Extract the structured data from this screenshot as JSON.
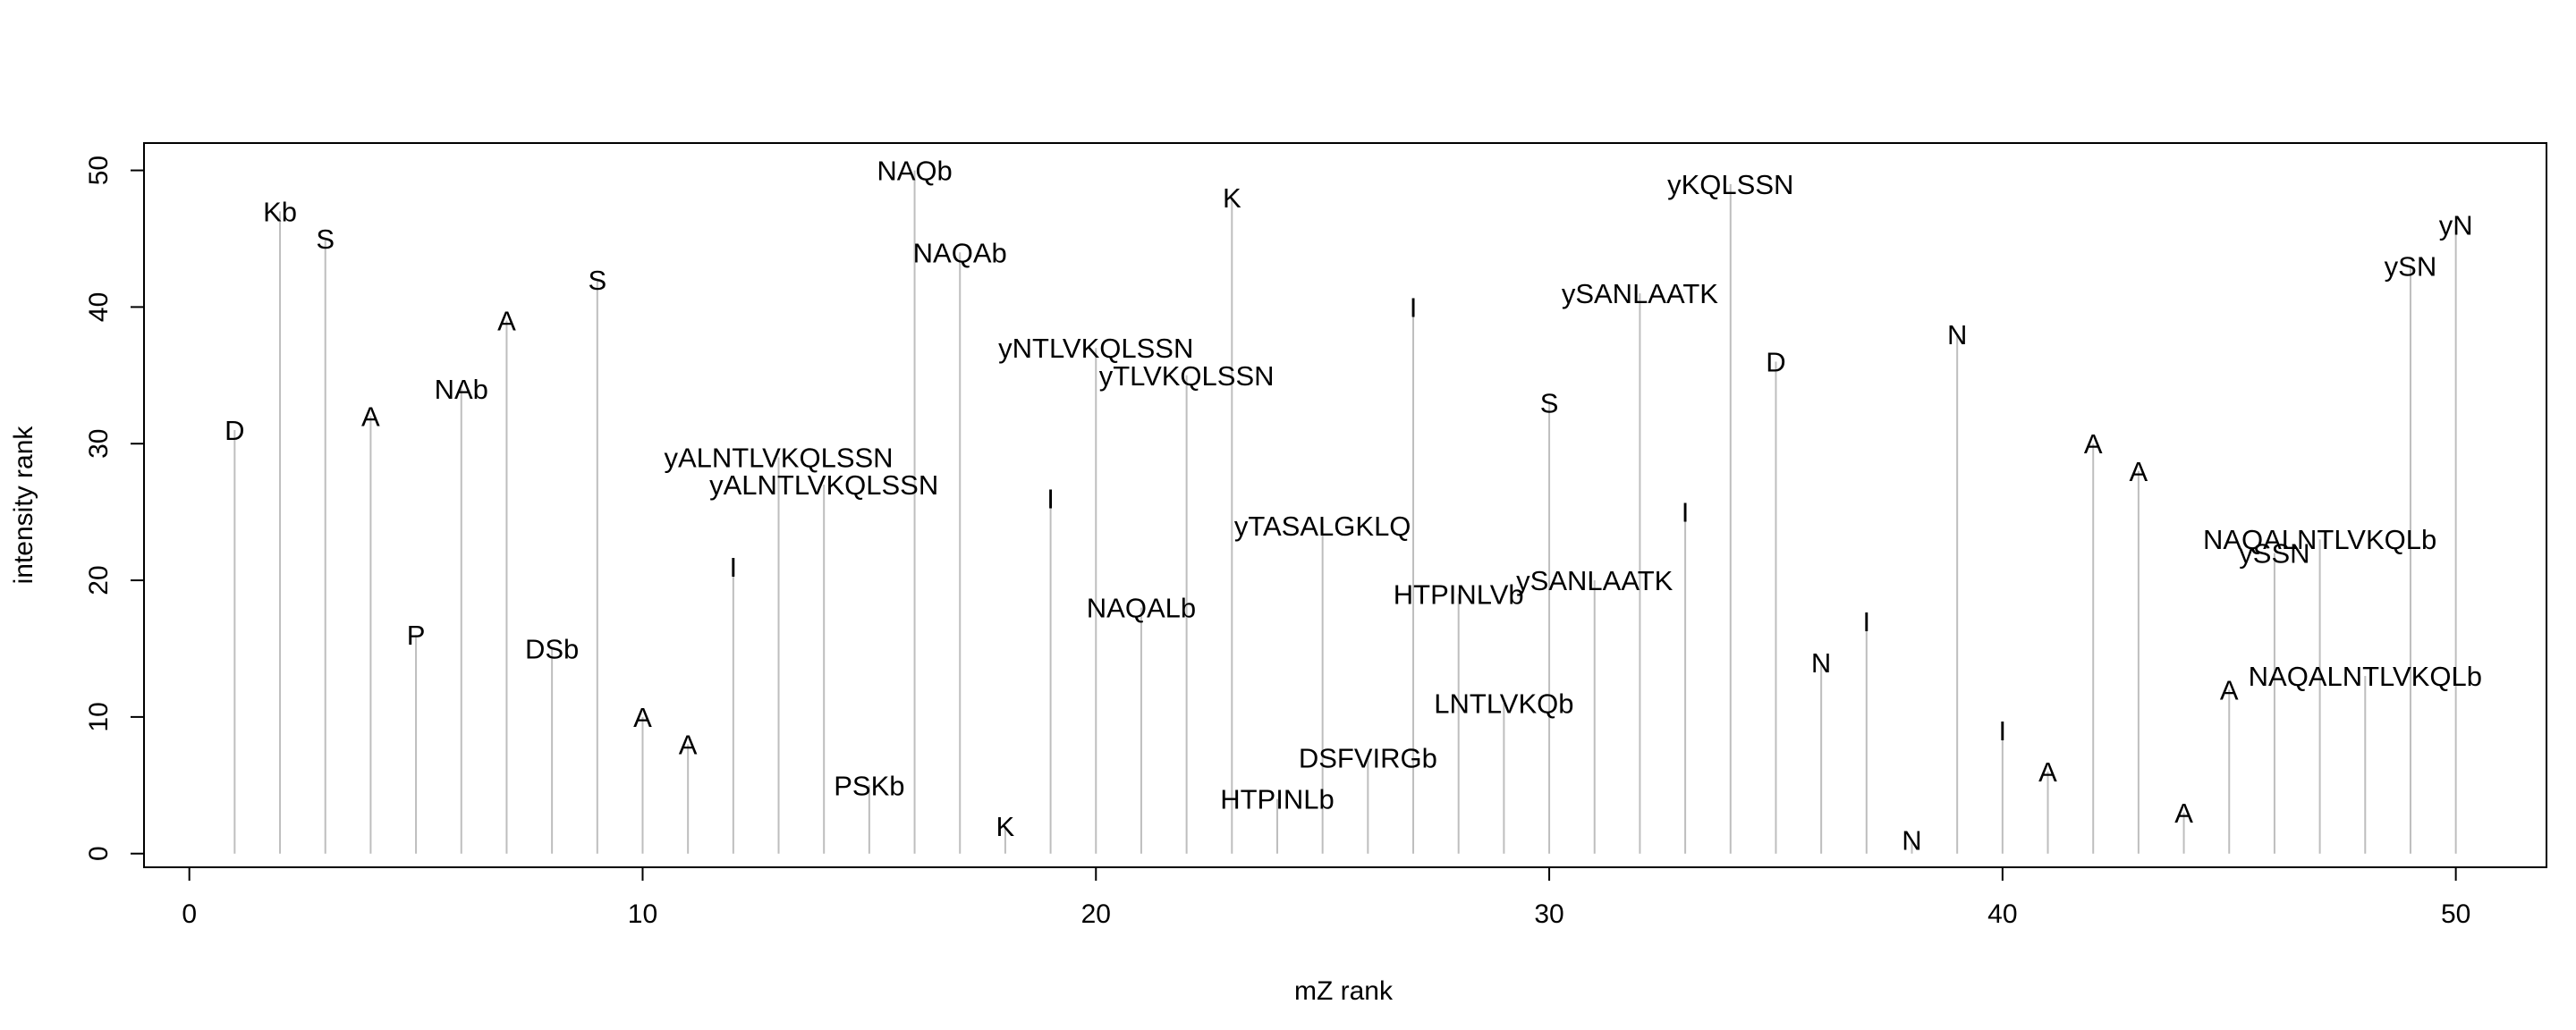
{
  "chart_data": {
    "type": "stem",
    "title": "",
    "xlabel": "mZ rank",
    "ylabel": "intensity rank",
    "xlim": [
      -1,
      52
    ],
    "ylim": [
      -1,
      52
    ],
    "xticks": [
      0,
      10,
      20,
      30,
      40,
      50
    ],
    "yticks": [
      0,
      10,
      20,
      30,
      40,
      50
    ],
    "grid": false,
    "points": [
      {
        "x": 1,
        "y": 31,
        "label": "D"
      },
      {
        "x": 2,
        "y": 47,
        "label": "Kb"
      },
      {
        "x": 3,
        "y": 45,
        "label": "S"
      },
      {
        "x": 4,
        "y": 32,
        "label": "A"
      },
      {
        "x": 5,
        "y": 16,
        "label": "P"
      },
      {
        "x": 6,
        "y": 34,
        "label": "NAb"
      },
      {
        "x": 7,
        "y": 39,
        "label": "A"
      },
      {
        "x": 8,
        "y": 15,
        "label": "DSb"
      },
      {
        "x": 9,
        "y": 42,
        "label": "S"
      },
      {
        "x": 10,
        "y": 10,
        "label": "A"
      },
      {
        "x": 11,
        "y": 8,
        "label": "A"
      },
      {
        "x": 12,
        "y": 21,
        "label": "I"
      },
      {
        "x": 13,
        "y": 29,
        "label": "yALNTLVKQLSSN"
      },
      {
        "x": 14,
        "y": 27,
        "label": "yALNTLVKQLSSN"
      },
      {
        "x": 15,
        "y": 5,
        "label": "PSKb"
      },
      {
        "x": 16,
        "y": 50,
        "label": "NAQb"
      },
      {
        "x": 17,
        "y": 44,
        "label": "NAQAb"
      },
      {
        "x": 18,
        "y": 2,
        "label": "K"
      },
      {
        "x": 19,
        "y": 26,
        "label": "I"
      },
      {
        "x": 20,
        "y": 37,
        "label": "yNTLVKQLSSN"
      },
      {
        "x": 21,
        "y": 18,
        "label": "NAQALb"
      },
      {
        "x": 22,
        "y": 35,
        "label": "yTLVKQLSSN"
      },
      {
        "x": 23,
        "y": 48,
        "label": "K"
      },
      {
        "x": 24,
        "y": 4,
        "label": "HTPINLb"
      },
      {
        "x": 25,
        "y": 24,
        "label": "yTASALGKLQ"
      },
      {
        "x": 26,
        "y": 7,
        "label": "DSFVIRGb"
      },
      {
        "x": 27,
        "y": 40,
        "label": "I"
      },
      {
        "x": 28,
        "y": 19,
        "label": "HTPINLVb"
      },
      {
        "x": 29,
        "y": 11,
        "label": "LNTLVKQb"
      },
      {
        "x": 30,
        "y": 33,
        "label": "S"
      },
      {
        "x": 31,
        "y": 20,
        "label": "ySANLAATK"
      },
      {
        "x": 32,
        "y": 41,
        "label": "ySANLAATK"
      },
      {
        "x": 33,
        "y": 25,
        "label": "I"
      },
      {
        "x": 34,
        "y": 49,
        "label": "yKQLSSN"
      },
      {
        "x": 35,
        "y": 36,
        "label": "D"
      },
      {
        "x": 36,
        "y": 14,
        "label": "N"
      },
      {
        "x": 37,
        "y": 17,
        "label": "I"
      },
      {
        "x": 38,
        "y": 1,
        "label": "N"
      },
      {
        "x": 39,
        "y": 38,
        "label": "N"
      },
      {
        "x": 40,
        "y": 9,
        "label": "I"
      },
      {
        "x": 41,
        "y": 6,
        "label": "A"
      },
      {
        "x": 42,
        "y": 30,
        "label": "A"
      },
      {
        "x": 43,
        "y": 28,
        "label": "A"
      },
      {
        "x": 44,
        "y": 3,
        "label": "A"
      },
      {
        "x": 45,
        "y": 12,
        "label": "A"
      },
      {
        "x": 46,
        "y": 22,
        "label": "ySSN"
      },
      {
        "x": 47,
        "y": 23,
        "label": "NAQALNTLVKQLb"
      },
      {
        "x": 48,
        "y": 13,
        "label": "NAQALNTLVKQLb"
      },
      {
        "x": 49,
        "y": 43,
        "label": "ySN"
      },
      {
        "x": 50,
        "y": 46,
        "label": "yN"
      }
    ]
  }
}
